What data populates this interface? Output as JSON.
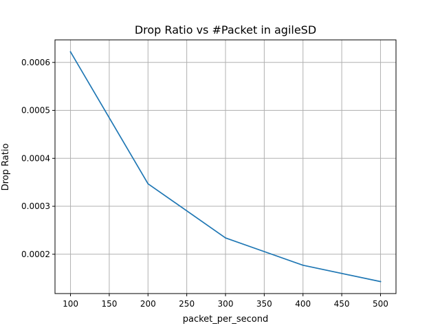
{
  "chart_data": {
    "type": "line",
    "title": "Drop Ratio vs #Packet in agileSD",
    "xlabel": "packet_per_second",
    "ylabel": "Drop Ratio",
    "x": [
      100,
      200,
      300,
      400,
      500
    ],
    "series": [
      {
        "values": [
          0.000622,
          0.000347,
          0.000234,
          0.000177,
          0.000143
        ]
      }
    ],
    "xlim": [
      80,
      520
    ],
    "ylim": [
      0.000118,
      0.000647
    ],
    "xticks": [
      100,
      150,
      200,
      250,
      300,
      350,
      400,
      450,
      500
    ],
    "xtick_labels": [
      "100",
      "150",
      "200",
      "250",
      "300",
      "350",
      "400",
      "450",
      "500"
    ],
    "yticks": [
      0.0002,
      0.0003,
      0.0004,
      0.0005,
      0.0006
    ],
    "ytick_labels": [
      "0.0002",
      "0.0003",
      "0.0004",
      "0.0005",
      "0.0006"
    ],
    "grid": true,
    "line_color": "#1f77b4",
    "grid_color": "#b0b0b0"
  }
}
